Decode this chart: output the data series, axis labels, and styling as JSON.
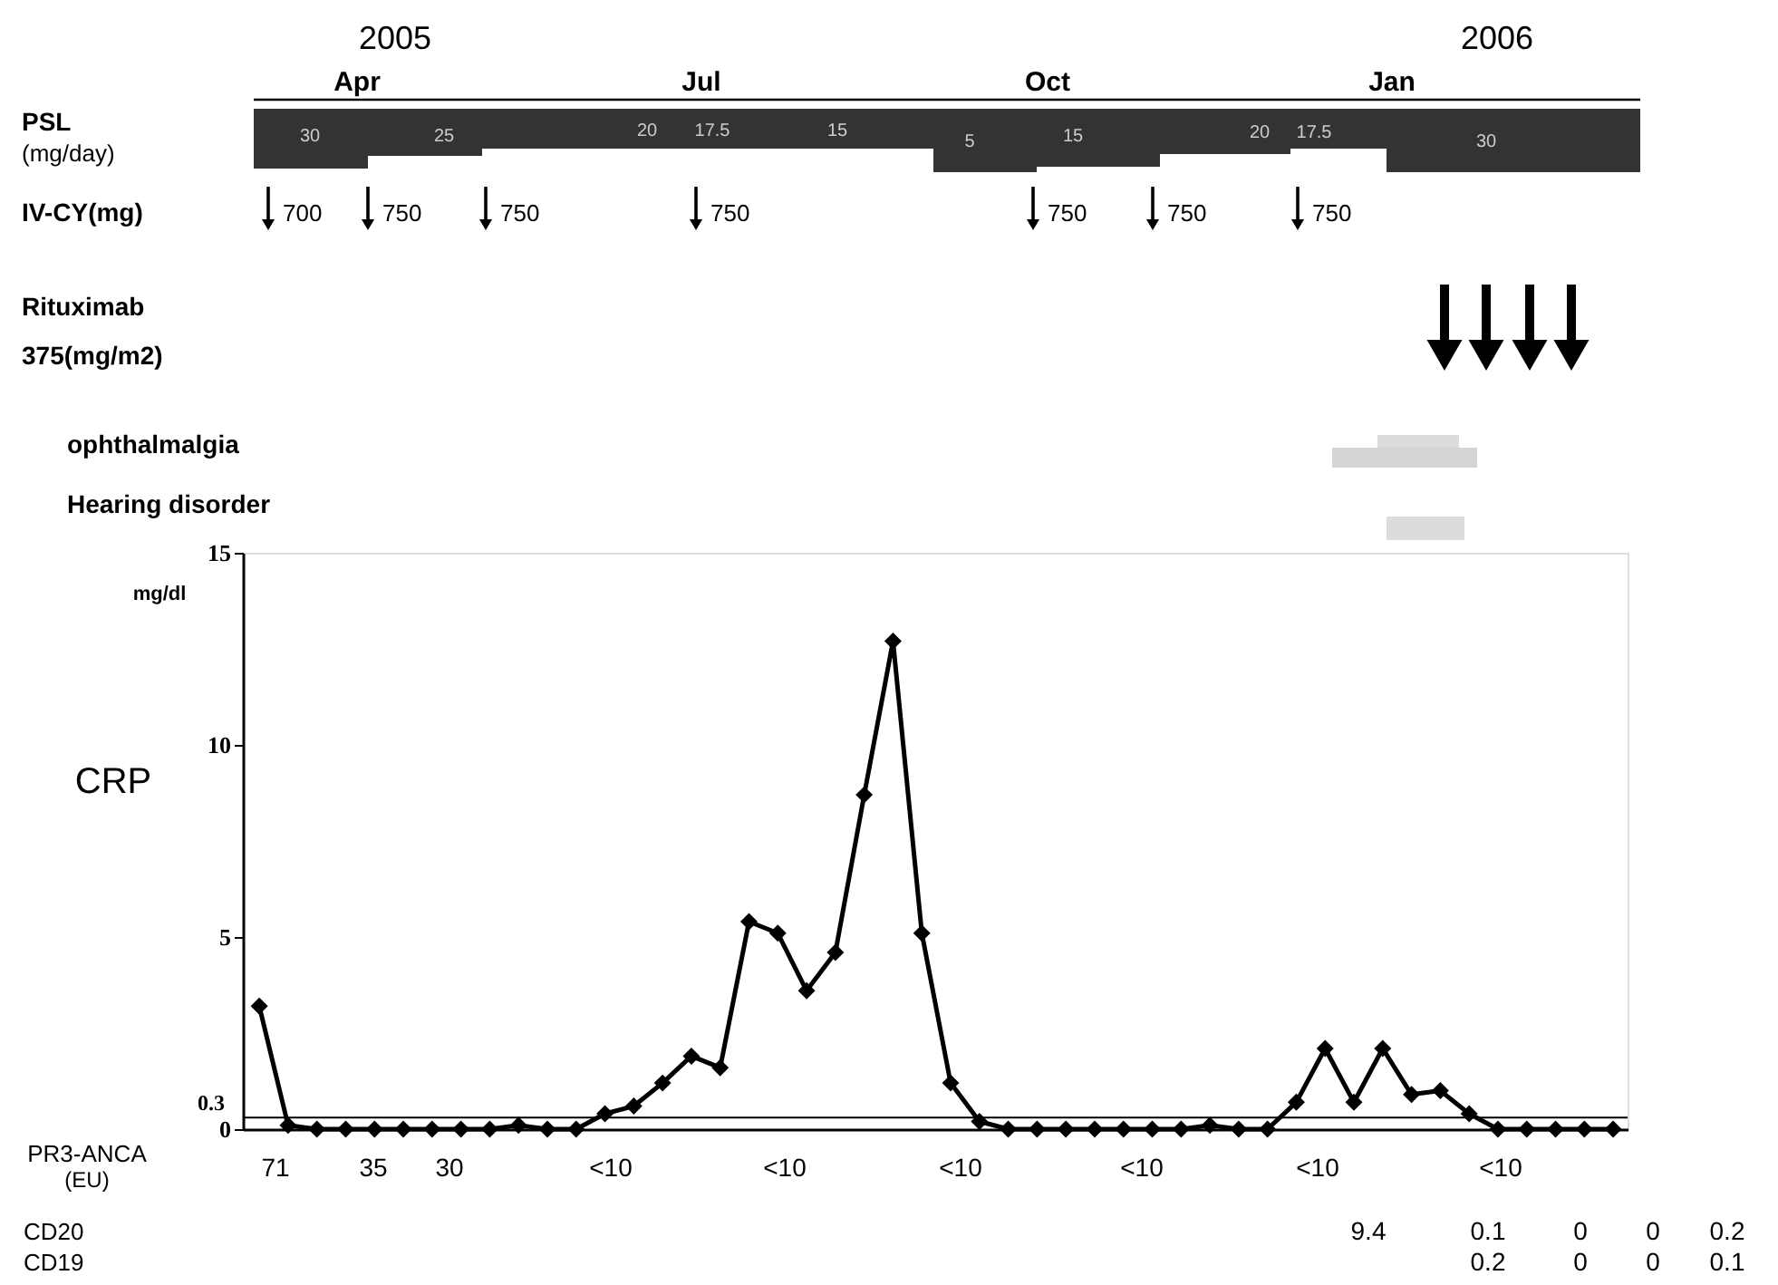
{
  "chart_data": {
    "type": "line",
    "ylabel": "CRP",
    "categories": [
      null,
      null,
      null,
      null,
      null,
      null,
      null,
      null,
      null,
      null,
      null,
      null,
      null,
      null,
      null,
      null,
      null,
      null,
      null,
      null,
      null,
      null,
      null,
      null,
      null,
      null,
      null,
      null,
      null,
      null,
      null,
      null,
      null,
      null,
      null,
      null,
      null,
      null,
      null,
      null,
      null,
      null,
      null,
      null,
      null,
      null,
      null,
      null
    ],
    "series": [
      {
        "color": "#000000",
        "values": [
          3.2,
          0.1,
          0,
          0,
          0,
          0,
          0,
          0,
          0,
          0.1,
          0,
          0,
          0.4,
          0.6,
          1.2,
          1.9,
          1.6,
          5.4,
          5.1,
          3.6,
          4.6,
          8.7,
          12.7,
          5.1,
          1.2,
          0.2,
          0,
          0,
          0,
          0,
          0,
          0,
          0,
          0.1,
          0,
          0,
          0.7,
          2.1,
          0.7,
          2.1,
          0.9,
          1.0,
          0.4,
          0,
          0,
          0,
          0,
          0
        ]
      }
    ],
    "ylim": [
      0,
      15
    ],
    "yticks": [
      0,
      5,
      10,
      15
    ],
    "ref_lines": [
      {
        "axis": "y",
        "value": 0.3,
        "label": "0.3",
        "color": "#000000"
      }
    ],
    "marker": "diamond",
    "line_style": "solid",
    "grid": false,
    "legend": false,
    "tick_labels": "y",
    "annotations": [
      "2005",
      "2006",
      "Apr",
      "Jul",
      "Oct",
      "Jan",
      "PSL",
      "(mg/day)",
      "30",
      "25",
      "20",
      "17.5",
      "15",
      "5",
      "15",
      "20",
      "17.5",
      "30",
      "IV-CY(mg)",
      "700",
      "750",
      "750",
      "750",
      "750",
      "750",
      "750",
      "Rituximab",
      "375(mg/m2)",
      "ophthalmalgia",
      "Hearing disorder",
      "mg/dl",
      "PR3-ANCA",
      "(EU)",
      "71",
      "35",
      "30",
      "<10",
      "<10",
      "<10",
      "<10",
      "<10",
      "<10",
      "CD20",
      "9.4",
      "0.1",
      "0",
      "0",
      "0.2",
      "CD19",
      "0.2",
      "0",
      "0",
      "0.1"
    ]
  }
}
